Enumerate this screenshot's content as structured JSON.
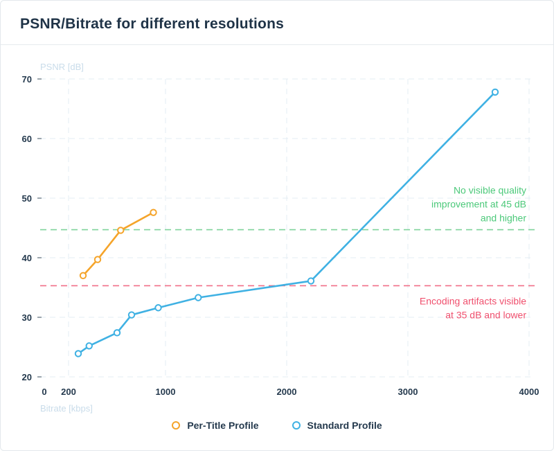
{
  "header": {
    "title": "PSNR/Bitrate for different resolutions"
  },
  "chart_data": {
    "type": "line",
    "title": "PSNR/Bitrate for different resolutions",
    "xlabel": "Bitrate [kbps]",
    "ylabel": "PSNR [dB]",
    "xlim": [
      0,
      4000
    ],
    "ylim": [
      20,
      70
    ],
    "xticks": [
      0,
      200,
      1000,
      2000,
      3000,
      4000
    ],
    "yticks": [
      20,
      30,
      40,
      50,
      60,
      70
    ],
    "grid": true,
    "legend_position": "bottom",
    "series": [
      {
        "name": "Per-Title Profile",
        "color": "#f5a42a",
        "x": [
          320,
          440,
          630,
          900
        ],
        "y": [
          37.0,
          39.7,
          44.6,
          47.6
        ]
      },
      {
        "name": "Standard Profile",
        "color": "#3fb1e3",
        "x": [
          280,
          370,
          600,
          720,
          940,
          1270,
          2200,
          3720
        ],
        "y": [
          23.9,
          25.2,
          27.4,
          30.4,
          31.6,
          33.3,
          36.1,
          67.8
        ]
      }
    ],
    "reference_lines": [
      {
        "y": 44.7,
        "color": "#7fd39a",
        "label": [
          "No visible quality",
          "improvement at 45 dB",
          "and higher"
        ]
      },
      {
        "y": 35.3,
        "color": "#f16f87",
        "label": [
          "Encoding artifacts visible",
          "at 35 dB and lower"
        ]
      }
    ]
  }
}
